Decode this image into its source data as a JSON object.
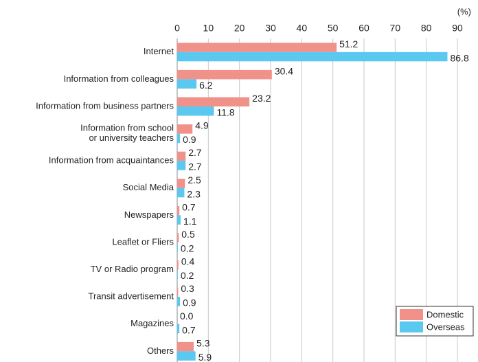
{
  "chart_data": {
    "type": "bar",
    "orientation": "horizontal",
    "unit_label": "(%)",
    "categories": [
      "Internet",
      "Information from colleagues",
      "Information from business partners",
      "Information from school\nor university teachers",
      "Information from acquaintances",
      "Social Media",
      "Newspapers",
      "Leaflet or Fliers",
      "TV or Radio program",
      "Transit advertisement",
      "Magazines",
      "Others"
    ],
    "series": [
      {
        "name": "Domestic",
        "color": "#f0918a",
        "values": [
          51.2,
          30.4,
          23.2,
          4.9,
          2.7,
          2.5,
          0.7,
          0.5,
          0.4,
          0.3,
          0,
          5.3
        ],
        "value_labels": [
          "51.2",
          "30.4",
          "23.2",
          "4.9",
          "2.7",
          "2.5",
          "0.7",
          "0.5",
          "0.4",
          "0.3",
          "0.0",
          "5.3"
        ]
      },
      {
        "name": "Overseas",
        "color": "#5bc8f0",
        "values": [
          86.8,
          6.2,
          11.8,
          0.9,
          2.7,
          2.3,
          1.1,
          0.2,
          0.2,
          0.9,
          0.7,
          5.9
        ]
      }
    ],
    "xlim": [
      0,
      90
    ],
    "xticks": [
      0,
      10,
      20,
      30,
      40,
      50,
      60,
      70,
      80,
      90
    ],
    "grid": true,
    "legend": "lower right"
  }
}
